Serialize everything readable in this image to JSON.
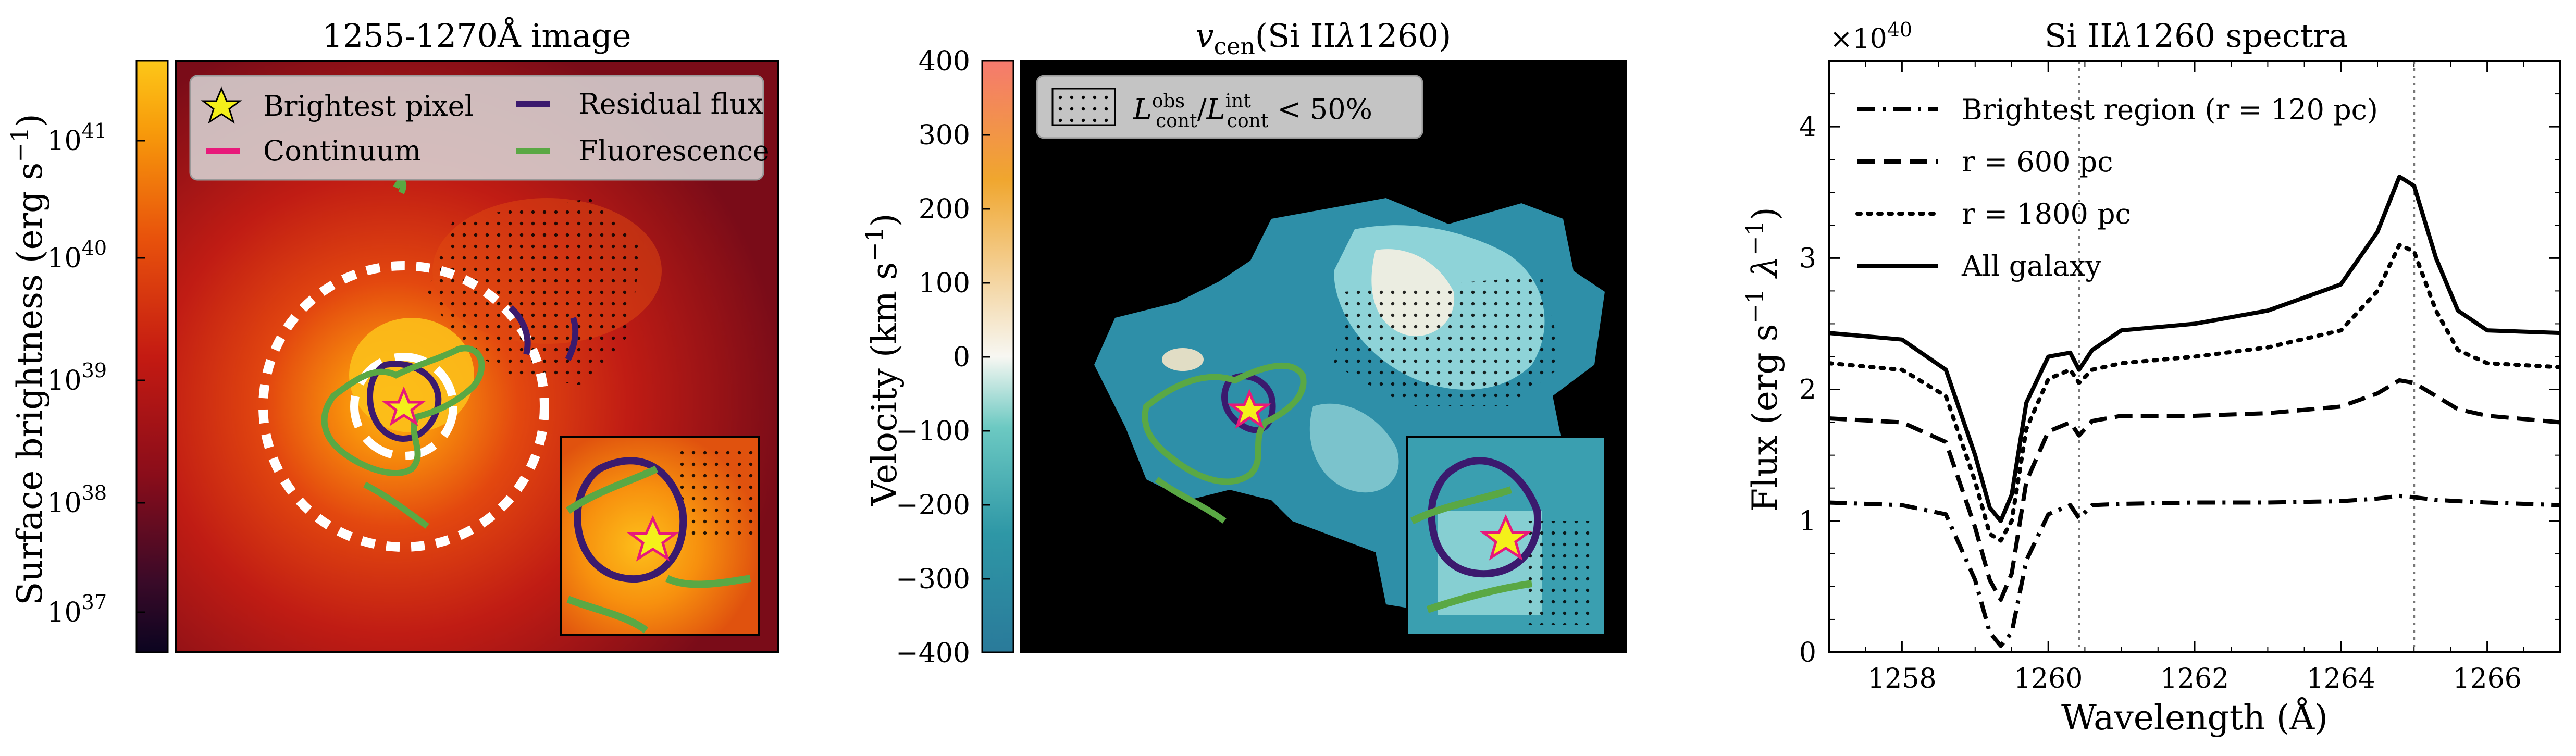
{
  "panels": {
    "image": {
      "title": "1255-1270Å image",
      "colorbar_label": "Surface brightness (erg s",
      "colorbar_label_sup": "−1",
      "colorbar_label_end": ")",
      "colorbar_ticks": [
        {
          "base": "10",
          "exp": "37"
        },
        {
          "base": "10",
          "exp": "38"
        },
        {
          "base": "10",
          "exp": "39"
        },
        {
          "base": "10",
          "exp": "40"
        },
        {
          "base": "10",
          "exp": "41"
        }
      ],
      "legend": {
        "brightest": "Brightest pixel",
        "residual": "Residual flux",
        "continuum": "Continuum",
        "fluorescence": "Fluorescence"
      }
    },
    "velocity": {
      "title_main": "v",
      "title_sub": "cen",
      "title_rest": "(Si II",
      "title_lambda": "λ",
      "title_end": "1260)",
      "colorbar_label": "Velocity (km s",
      "colorbar_label_sup": "−1",
      "colorbar_label_end": ")",
      "colorbar_ticks": [
        "400",
        "300",
        "200",
        "100",
        "0",
        "−100",
        "−200",
        "−300",
        "−400"
      ],
      "legend": {
        "L1": "L",
        "L1_sup": "obs",
        "L1_sub": "cont",
        "slash": "/",
        "L2": "L",
        "L2_sup": "int",
        "L2_sub": "cont",
        "rest": " < 50%"
      }
    },
    "spectra": {
      "title_pre": "Si II",
      "title_lambda": "λ",
      "title_post": "1260 spectra",
      "multiplier": "×10",
      "multiplier_exp": "40",
      "xlabel": "Wavelength (Å)",
      "ylabel": "Flux (erg s",
      "ylabel_sup1": "−1",
      "ylabel_mid": " λ",
      "ylabel_sup2": "−1",
      "ylabel_end": ")"
    }
  },
  "colors": {
    "residual": "#3b1a6e",
    "continuum": "#e8197a",
    "fluorescence": "#5aa844",
    "star": "#f4f01a"
  },
  "chart_data": {
    "type": "line",
    "title": "Si IIλ1260 spectra",
    "xlabel": "Wavelength (Å)",
    "ylabel": "Flux (erg s−1 λ−1)",
    "multiplier": "×10^40",
    "xlim": [
      1257,
      1267
    ],
    "ylim": [
      0,
      4.5
    ],
    "xticks": [
      1258,
      1260,
      1262,
      1264,
      1266
    ],
    "yticks": [
      0,
      1,
      2,
      3,
      4
    ],
    "vlines": [
      1260.42,
      1265.0
    ],
    "legend_position": "top-left",
    "series": [
      {
        "name": "Brightest region (r = 120 pc)",
        "style": "dashdot",
        "x": [
          1257,
          1258,
          1258.6,
          1259.0,
          1259.2,
          1259.35,
          1259.5,
          1259.7,
          1260.0,
          1260.3,
          1260.42,
          1260.6,
          1261,
          1262,
          1263,
          1264,
          1264.5,
          1264.8,
          1265.0,
          1265.3,
          1265.6,
          1266,
          1267
        ],
        "y": [
          1.14,
          1.12,
          1.05,
          0.55,
          0.15,
          0.05,
          0.15,
          0.7,
          1.05,
          1.12,
          1.02,
          1.12,
          1.13,
          1.14,
          1.14,
          1.15,
          1.17,
          1.19,
          1.18,
          1.16,
          1.15,
          1.14,
          1.12
        ]
      },
      {
        "name": "r = 600 pc",
        "style": "dashed",
        "x": [
          1257,
          1258,
          1258.6,
          1259.0,
          1259.2,
          1259.35,
          1259.5,
          1259.7,
          1260.0,
          1260.3,
          1260.42,
          1260.6,
          1261,
          1262,
          1263,
          1264,
          1264.5,
          1264.8,
          1265.0,
          1265.3,
          1265.6,
          1266,
          1267
        ],
        "y": [
          1.78,
          1.75,
          1.6,
          0.95,
          0.55,
          0.4,
          0.6,
          1.3,
          1.68,
          1.75,
          1.65,
          1.76,
          1.8,
          1.8,
          1.82,
          1.87,
          1.97,
          2.07,
          2.05,
          1.95,
          1.85,
          1.8,
          1.75
        ]
      },
      {
        "name": "r = 1800 pc",
        "style": "dotted",
        "x": [
          1257,
          1258,
          1258.6,
          1259.0,
          1259.2,
          1259.35,
          1259.5,
          1259.7,
          1260.0,
          1260.3,
          1260.42,
          1260.6,
          1261,
          1262,
          1263,
          1264,
          1264.5,
          1264.8,
          1265.0,
          1265.3,
          1265.6,
          1266,
          1267
        ],
        "y": [
          2.2,
          2.15,
          1.95,
          1.3,
          0.9,
          0.85,
          1.0,
          1.7,
          2.08,
          2.15,
          2.05,
          2.15,
          2.2,
          2.25,
          2.32,
          2.45,
          2.75,
          3.1,
          3.05,
          2.6,
          2.3,
          2.2,
          2.17
        ]
      },
      {
        "name": "All galaxy",
        "style": "solid",
        "x": [
          1257,
          1258,
          1258.6,
          1259.0,
          1259.2,
          1259.35,
          1259.5,
          1259.7,
          1260.0,
          1260.3,
          1260.42,
          1260.6,
          1261,
          1262,
          1263,
          1264,
          1264.5,
          1264.8,
          1265.0,
          1265.3,
          1265.6,
          1266,
          1267
        ],
        "y": [
          2.43,
          2.38,
          2.15,
          1.5,
          1.1,
          1.0,
          1.2,
          1.9,
          2.25,
          2.28,
          2.15,
          2.3,
          2.45,
          2.5,
          2.6,
          2.8,
          3.2,
          3.62,
          3.55,
          3.0,
          2.6,
          2.45,
          2.43
        ]
      }
    ]
  }
}
